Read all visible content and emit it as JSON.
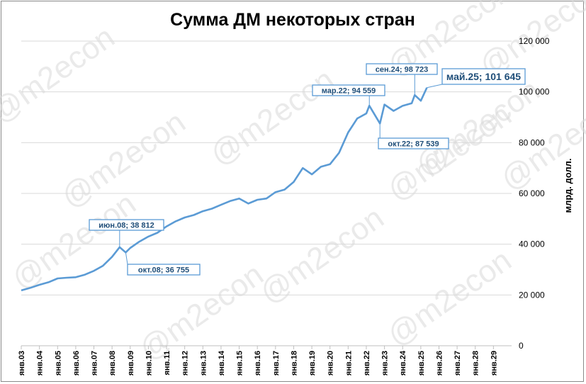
{
  "watermark": "@m2econ",
  "chart_data": {
    "type": "line",
    "title": "Сумма ДМ некоторых стран",
    "ylabel": "млрд. долл.",
    "ylim": [
      0,
      120000
    ],
    "yticks": [
      0,
      20000,
      40000,
      60000,
      80000,
      100000,
      120000
    ],
    "ytick_labels": [
      "0",
      "20 000",
      "40 000",
      "60 000",
      "80 000",
      "100 000",
      "120 000"
    ],
    "xlim": [
      "2003-01",
      "2030-01"
    ],
    "xtick_labels": [
      "янв.03",
      "янв.04",
      "янв.05",
      "янв.06",
      "янв.07",
      "янв.08",
      "янв.09",
      "янв.10",
      "янв.11",
      "янв.12",
      "янв.13",
      "янв.14",
      "янв.15",
      "янв.16",
      "янв.17",
      "янв.18",
      "янв.19",
      "янв.20",
      "янв.21",
      "янв.22",
      "янв.23",
      "янв.24",
      "янв.25",
      "янв.26",
      "янв.27",
      "янв.28",
      "янв.29"
    ],
    "grid": true,
    "series": [
      {
        "color": "#5b9bd5",
        "x": [
          "2003-01",
          "2003-07",
          "2004-01",
          "2004-07",
          "2005-01",
          "2005-07",
          "2006-01",
          "2006-07",
          "2007-01",
          "2007-07",
          "2008-01",
          "2008-06",
          "2008-10",
          "2009-01",
          "2009-07",
          "2010-01",
          "2010-07",
          "2011-01",
          "2011-07",
          "2012-01",
          "2012-07",
          "2013-01",
          "2013-07",
          "2014-01",
          "2014-07",
          "2015-01",
          "2015-07",
          "2016-01",
          "2016-07",
          "2017-01",
          "2017-07",
          "2018-01",
          "2018-07",
          "2019-01",
          "2019-07",
          "2020-01",
          "2020-07",
          "2021-01",
          "2021-07",
          "2022-01",
          "2022-03",
          "2022-10",
          "2023-01",
          "2023-07",
          "2024-01",
          "2024-07",
          "2024-09",
          "2025-01",
          "2025-05"
        ],
        "values": [
          21800,
          22800,
          24000,
          25000,
          26500,
          26800,
          27000,
          28000,
          29500,
          31500,
          35000,
          38812,
          36755,
          38500,
          41000,
          43000,
          44500,
          47000,
          49000,
          50500,
          51500,
          53000,
          54000,
          55500,
          57000,
          58000,
          56000,
          57500,
          58000,
          60500,
          61500,
          64500,
          70000,
          67500,
          70500,
          71500,
          76000,
          84000,
          89500,
          91500,
          94559,
          87539,
          95000,
          92500,
          94500,
          95500,
          98723,
          96500,
          101645
        ]
      }
    ],
    "annotations": [
      {
        "text": "июн.08; 38 812",
        "x": "2008-06",
        "y": 38812
      },
      {
        "text": "окт.08; 36 755",
        "x": "2008-10",
        "y": 36755
      },
      {
        "text": "мар.22; 94 559",
        "x": "2022-03",
        "y": 94559
      },
      {
        "text": "окт.22; 87 539",
        "x": "2022-10",
        "y": 87539
      },
      {
        "text": "сен.24; 98 723",
        "x": "2024-09",
        "y": 98723
      },
      {
        "text": "май.25; 101 645",
        "x": "2025-05",
        "y": 101645
      }
    ]
  }
}
